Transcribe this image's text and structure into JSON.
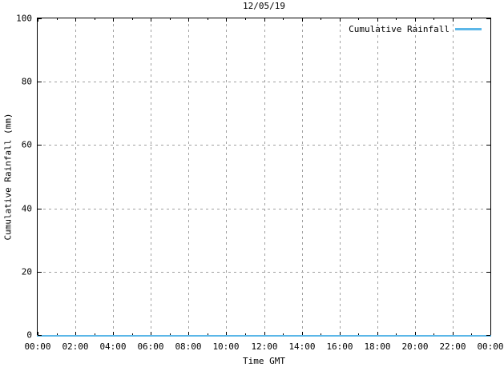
{
  "colors": {
    "line": "#5cb7e8",
    "grid": "#a0a0a0",
    "axis": "#000000",
    "background": "#ffffff",
    "text": "#000000"
  },
  "chart_data": {
    "type": "line",
    "title": "12/05/19",
    "xlabel": "Time GMT",
    "ylabel": "Cumulative Rainfall (mm)",
    "x_tick_labels": [
      "00:00",
      "02:00",
      "04:00",
      "06:00",
      "08:00",
      "10:00",
      "12:00",
      "14:00",
      "16:00",
      "18:00",
      "20:00",
      "22:00",
      "00:00"
    ],
    "x_tick_hours": [
      0,
      2,
      4,
      6,
      8,
      10,
      12,
      14,
      16,
      18,
      20,
      22,
      24
    ],
    "x_minor_tick_hours": [
      1,
      3,
      5,
      7,
      9,
      11,
      13,
      15,
      17,
      19,
      21,
      23
    ],
    "yticks": [
      0,
      20,
      40,
      60,
      80,
      100
    ],
    "xlim": [
      0,
      24
    ],
    "ylim": [
      0,
      100
    ],
    "grid": true,
    "legend_position": "top-right-inside",
    "series": [
      {
        "name": "Cumulative Rainfall",
        "color": "#5cb7e8",
        "x_hours": [
          0,
          24
        ],
        "values": [
          0,
          0
        ]
      }
    ]
  }
}
